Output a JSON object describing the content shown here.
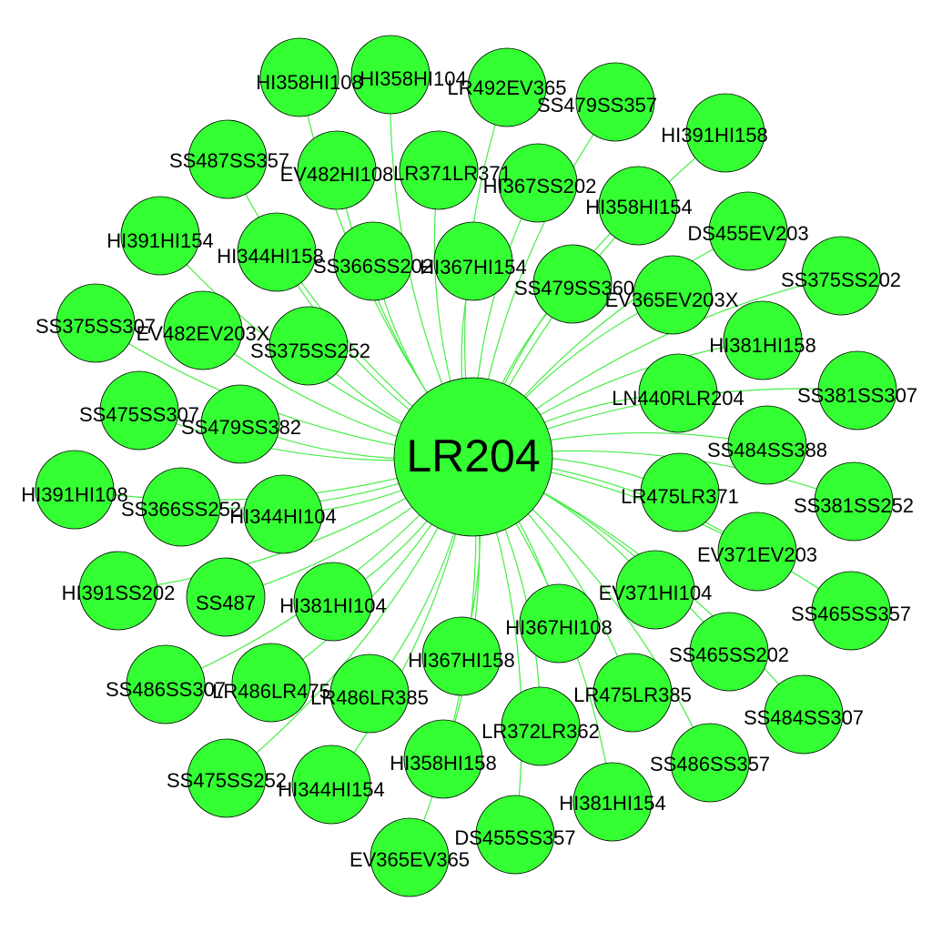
{
  "graph": {
    "hub_label": "LR204",
    "node_color": "#33ff33",
    "edge_color": "#44ee44",
    "labels": [
      "HI358HI108",
      "HI358HI104",
      "LR492EV365",
      "SS479SS357",
      "HI391HI158",
      "SS487SS357",
      "EV482HI108",
      "LR371LR371",
      "HI367SS202",
      "HI358HI154",
      "DS455EV203",
      "HI391HI154",
      "HI344HI158",
      "SS366SS202",
      "HI367HI154",
      "SS479SS360",
      "EV365EV203X",
      "SS375SS202",
      "SS375SS307",
      "EV482EV203X",
      "SS375SS252",
      "HI381HI158",
      "SS381SS307",
      "LN440RLR204",
      "SS475SS307",
      "SS479SS382",
      "SS484SS388",
      "HI391HI108",
      "SS366SS252",
      "HI344HI104",
      "LR475LR371",
      "SS381SS252",
      "EV371EV203",
      "HI391SS202",
      "SS487",
      "HI381HI104",
      "EV371HI104",
      "SS465SS357",
      "HI367HI108",
      "SS465SS202",
      "SS486SS307",
      "LR486LR475",
      "LR486LR385",
      "HI367HI158",
      "LR475LR385",
      "SS484SS307",
      "LR372LR362",
      "SS486SS357",
      "SS475SS252",
      "HI344HI154",
      "HI358HI158",
      "HI381HI154",
      "DS455SS357",
      "EV365EV365"
    ]
  }
}
